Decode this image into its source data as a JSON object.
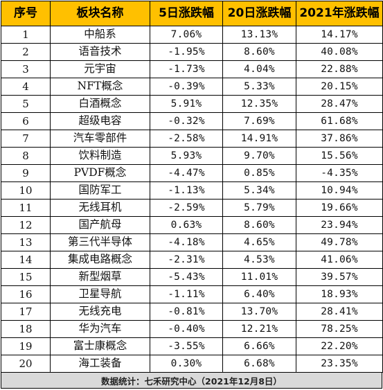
{
  "headers": [
    "序号",
    "板块名称",
    "5日涨跌幅",
    "20日涨跌幅",
    "2021年涨跌幅"
  ],
  "rows": [
    {
      "idx": "1",
      "name": "中船系",
      "d5": "7.06%",
      "d20": "13.13%",
      "ytd": "14.17%"
    },
    {
      "idx": "2",
      "name": "语音技术",
      "d5": "-1.95%",
      "d20": "8.60%",
      "ytd": "40.08%"
    },
    {
      "idx": "3",
      "name": "元宇宙",
      "d5": "-1.73%",
      "d20": "4.04%",
      "ytd": "22.88%"
    },
    {
      "idx": "4",
      "name": "NFT概念",
      "d5": "-0.39%",
      "d20": "5.33%",
      "ytd": "20.15%"
    },
    {
      "idx": "5",
      "name": "白酒概念",
      "d5": "5.91%",
      "d20": "12.35%",
      "ytd": "28.47%"
    },
    {
      "idx": "6",
      "name": "超级电容",
      "d5": "-0.32%",
      "d20": "7.69%",
      "ytd": "61.68%"
    },
    {
      "idx": "7",
      "name": "汽车零部件",
      "d5": "-2.58%",
      "d20": "14.91%",
      "ytd": "37.86%"
    },
    {
      "idx": "8",
      "name": "饮料制造",
      "d5": "5.93%",
      "d20": "9.70%",
      "ytd": "15.56%"
    },
    {
      "idx": "9",
      "name": "PVDF概念",
      "d5": "-4.47%",
      "d20": "0.85%",
      "ytd": "-4.35%"
    },
    {
      "idx": "10",
      "name": "国防军工",
      "d5": "-1.13%",
      "d20": "5.34%",
      "ytd": "10.94%"
    },
    {
      "idx": "11",
      "name": "无线耳机",
      "d5": "-2.59%",
      "d20": "5.79%",
      "ytd": "19.66%"
    },
    {
      "idx": "12",
      "name": "国产航母",
      "d5": "0.63%",
      "d20": "8.60%",
      "ytd": "23.94%"
    },
    {
      "idx": "13",
      "name": "第三代半导体",
      "d5": "-4.18%",
      "d20": "4.65%",
      "ytd": "49.78%"
    },
    {
      "idx": "14",
      "name": "集成电路概念",
      "d5": "-2.31%",
      "d20": "4.53%",
      "ytd": "41.06%"
    },
    {
      "idx": "15",
      "name": "新型烟草",
      "d5": "-5.43%",
      "d20": "11.01%",
      "ytd": "39.57%"
    },
    {
      "idx": "16",
      "name": "卫星导航",
      "d5": "-1.11%",
      "d20": "6.40%",
      "ytd": "18.93%"
    },
    {
      "idx": "17",
      "name": "无线充电",
      "d5": "-0.81%",
      "d20": "13.70%",
      "ytd": "28.41%"
    },
    {
      "idx": "18",
      "name": "华为汽车",
      "d5": "-0.40%",
      "d20": "12.21%",
      "ytd": "78.25%"
    },
    {
      "idx": "19",
      "name": "富士康概念",
      "d5": "-3.55%",
      "d20": "6.66%",
      "ytd": "22.20%"
    },
    {
      "idx": "20",
      "name": "海工装备",
      "d5": "0.30%",
      "d20": "6.68%",
      "ytd": "23.35%"
    }
  ],
  "footer": "数据统计：七禾研究中心（2021年12月8日）",
  "colors": {
    "header_bg": "#ffc000",
    "footer_bg": "#d9d9d9",
    "border": "#000000"
  }
}
